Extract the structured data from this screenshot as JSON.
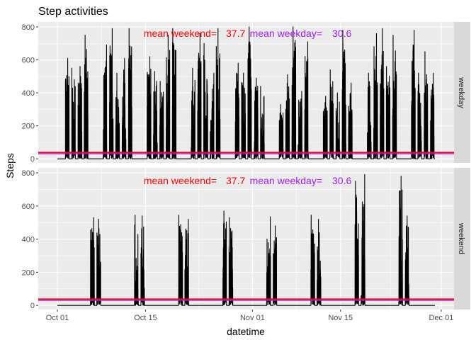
{
  "chart_data": {
    "type": "line",
    "title": "Step activities",
    "xlabel": "datetime",
    "ylabel": "Steps",
    "x_ticks": [
      "Oct 01",
      "Oct 15",
      "Nov 01",
      "Nov 15",
      "Dec 01"
    ],
    "y_ticks": [
      "0",
      "200",
      "400",
      "600",
      "800"
    ],
    "ylim": [
      -25,
      830
    ],
    "panels": [
      "weekday",
      "weekend"
    ],
    "annotations": {
      "mean_weekend_label": "mean weekend=",
      "mean_weekend_value": "37.7",
      "mean_weekday_label": "mean weekday=",
      "mean_weekday_value": "30.6"
    },
    "mean_weekend": 37.7,
    "mean_weekday": 30.6,
    "line_color": "#000000",
    "mean_line_colors": [
      "#ff0000",
      "#a020f0"
    ],
    "annotation_colors": {
      "weekend": "#ff0000",
      "weekday": "#a020f0"
    },
    "date_range": [
      "2012-10-01",
      "2012-11-30"
    ],
    "weekday_days": [
      "2012-10-02",
      "2012-10-03",
      "2012-10-04",
      "2012-10-05",
      "2012-10-08",
      "2012-10-09",
      "2012-10-10",
      "2012-10-11",
      "2012-10-12",
      "2012-10-15",
      "2012-10-16",
      "2012-10-17",
      "2012-10-18",
      "2012-10-19",
      "2012-10-22",
      "2012-10-23",
      "2012-10-24",
      "2012-10-25",
      "2012-10-26",
      "2012-10-29",
      "2012-10-30",
      "2012-10-31",
      "2012-11-01",
      "2012-11-02",
      "2012-11-05",
      "2012-11-06",
      "2012-11-07",
      "2012-11-08",
      "2012-11-09",
      "2012-11-12",
      "2012-11-13",
      "2012-11-14",
      "2012-11-15",
      "2012-11-16",
      "2012-11-19",
      "2012-11-20",
      "2012-11-21",
      "2012-11-22",
      "2012-11-23",
      "2012-11-26",
      "2012-11-27",
      "2012-11-28",
      "2012-11-29"
    ],
    "weekday_peaks": [
      610,
      550,
      560,
      750,
      690,
      790,
      520,
      610,
      790,
      620,
      530,
      470,
      750,
      790,
      550,
      760,
      700,
      520,
      790,
      580,
      520,
      800,
      490,
      440,
      330,
      510,
      800,
      410,
      710,
      380,
      540,
      400,
      780,
      460,
      520,
      760,
      790,
      560,
      750,
      780,
      520,
      650,
      520
    ],
    "weekend_days": [
      "2012-10-06",
      "2012-10-07",
      "2012-10-13",
      "2012-10-14",
      "2012-10-20",
      "2012-10-21",
      "2012-10-27",
      "2012-10-28",
      "2012-11-03",
      "2012-11-04",
      "2012-11-10",
      "2012-11-11",
      "2012-11-17",
      "2012-11-18",
      "2012-11-24",
      "2012-11-25"
    ],
    "weekend_peaks": [
      530,
      520,
      545,
      540,
      545,
      520,
      570,
      530,
      535,
      480,
      545,
      520,
      750,
      790,
      780,
      540
    ]
  }
}
